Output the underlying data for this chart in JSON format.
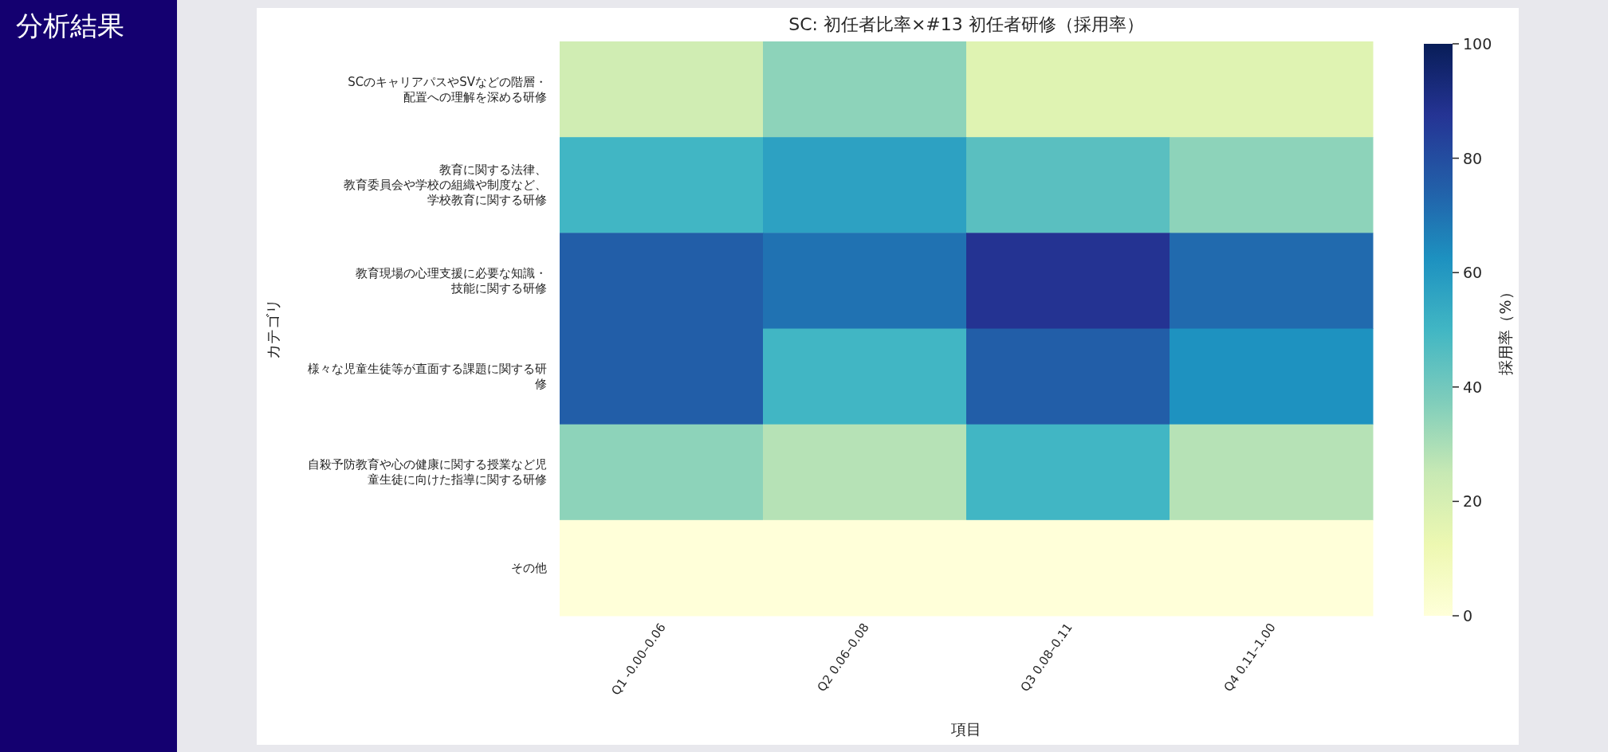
{
  "chart_data": {
    "type": "heatmap",
    "title": "SC: 初任者比率×#13 初任者研修（採用率）",
    "xlabel": "項目",
    "ylabel": "カテゴリ",
    "clabel": "採用率（%）",
    "categories": [
      "Q1 -0.00–0.06",
      "Q2 0.06–0.08",
      "Q3 0.08–0.11",
      "Q4 0.11–1.00"
    ],
    "y_categories": [
      "SCのキャリアパスやSVなどの階層・配置への理解を深める研修",
      "教育に関する法律、教育委員会や学校の組織や制度など、学校教育に関する研修",
      "教育現場の心理支援に必要な知識・技能に関する研修",
      "様々な児童生徒等が直面する課題に関する研修",
      "自殺予防教育や心の健康に関する授業など児童生徒に向けた指導に関する研修",
      "その他"
    ],
    "cells": [
      [
        22,
        35,
        17,
        17
      ],
      [
        50,
        57,
        45,
        35
      ],
      [
        75,
        70,
        88,
        72
      ],
      [
        75,
        50,
        75,
        62
      ],
      [
        35,
        28,
        50,
        28
      ],
      [
        0,
        0,
        0,
        0
      ]
    ],
    "clim": [
      0,
      100
    ],
    "cticks": [
      0,
      20,
      40,
      60,
      80,
      100
    ],
    "annotations": [
      "分析結果"
    ]
  }
}
